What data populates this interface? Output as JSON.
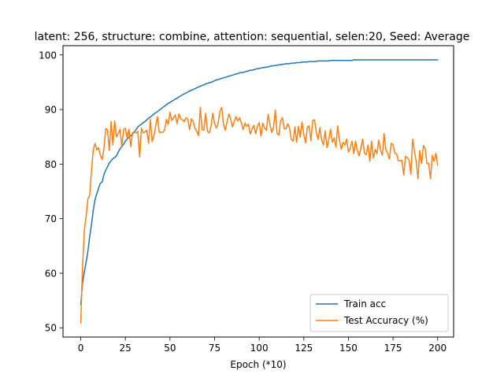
{
  "chart_data": {
    "type": "line",
    "title": "latent: 256, structure: combine, attention: sequential, selen:20, Seed: Average",
    "xlabel": "Epoch (*10)",
    "ylabel": "",
    "xlim": [
      -9.95,
      208.95
    ],
    "ylim": [
      48.3,
      101.7
    ],
    "xticks": [
      0,
      25,
      50,
      75,
      100,
      125,
      150,
      175,
      200
    ],
    "yticks": [
      50,
      60,
      70,
      80,
      90,
      100
    ],
    "grid": false,
    "legend_position": "lower-right",
    "colors": {
      "train": "#1f77b4",
      "test": "#ff7f0e"
    },
    "x_start": 0,
    "series": [
      {
        "name": "Train acc",
        "values": [
          54.3,
          58.2,
          60.2,
          62.0,
          64.0,
          66.7,
          68.9,
          71.5,
          73.5,
          74.6,
          75.6,
          76.5,
          76.7,
          78.1,
          78.9,
          79.5,
          80.2,
          80.6,
          81.0,
          81.2,
          81.5,
          82.2,
          82.8,
          83.2,
          83.6,
          84.2,
          84.6,
          84.9,
          85.2,
          85.5,
          85.9,
          86.3,
          86.8,
          87.1,
          87.3,
          87.6,
          87.8,
          88.1,
          88.4,
          88.6,
          88.9,
          89.2,
          89.4,
          89.6,
          89.9,
          90.1,
          90.4,
          90.6,
          90.9,
          91.1,
          91.3,
          91.5,
          91.7,
          91.9,
          92.1,
          92.3,
          92.5,
          92.7,
          92.9,
          93.0,
          93.2,
          93.4,
          93.5,
          93.7,
          93.8,
          94.0,
          94.1,
          94.3,
          94.4,
          94.5,
          94.7,
          94.8,
          94.9,
          95.0,
          95.1,
          95.3,
          95.4,
          95.5,
          95.6,
          95.7,
          95.8,
          95.9,
          96.0,
          96.1,
          96.2,
          96.3,
          96.4,
          96.5,
          96.6,
          96.7,
          96.8,
          96.8,
          96.9,
          97.0,
          97.1,
          97.2,
          97.2,
          97.3,
          97.4,
          97.5,
          97.5,
          97.6,
          97.7,
          97.7,
          97.8,
          97.8,
          97.9,
          98.0,
          98.0,
          98.1,
          98.1,
          98.2,
          98.2,
          98.3,
          98.3,
          98.4,
          98.4,
          98.4,
          98.5,
          98.5,
          98.5,
          98.6,
          98.6,
          98.6,
          98.7,
          98.7,
          98.7,
          98.7,
          98.8,
          98.8,
          98.8,
          98.8,
          98.8,
          98.9,
          98.9,
          98.9,
          98.9,
          98.9,
          98.9,
          98.9,
          99.0,
          99.0,
          99.0,
          99.0,
          99.0,
          99.0,
          99.0,
          99.0,
          99.0,
          99.0,
          99.0,
          99.0,
          99.0,
          99.1,
          99.1,
          99.1,
          99.1,
          99.1,
          99.1,
          99.1,
          99.1,
          99.1,
          99.1,
          99.1,
          99.1,
          99.1,
          99.1,
          99.1,
          99.1,
          99.1,
          99.1,
          99.1,
          99.1,
          99.1,
          99.1,
          99.1,
          99.1,
          99.1,
          99.1,
          99.1,
          99.1,
          99.1,
          99.1,
          99.1,
          99.1,
          99.1,
          99.1,
          99.1,
          99.1,
          99.1,
          99.1,
          99.1,
          99.1,
          99.1,
          99.1,
          99.1,
          99.1,
          99.1,
          99.1,
          99.1,
          99.1
        ]
      },
      {
        "name": "Test Accuracy (%)",
        "values": [
          50.9,
          61.2,
          67.8,
          70.4,
          73.6,
          74.3,
          78.7,
          82.6,
          83.8,
          82.6,
          83.0,
          81.6,
          80.8,
          82.9,
          86.5,
          86.3,
          82.5,
          87.8,
          83.5,
          87.9,
          85.0,
          85.6,
          86.4,
          83.3,
          86.3,
          86.6,
          84.7,
          86.4,
          83.2,
          85.7,
          86.0,
          85.7,
          86.0,
          81.3,
          86.6,
          85.7,
          85.9,
          86.2,
          83.8,
          88.2,
          84.1,
          85.2,
          87.0,
          88.7,
          85.8,
          85.8,
          85.8,
          86.3,
          88.2,
          87.3,
          89.5,
          88.0,
          88.5,
          89.0,
          87.4,
          89.2,
          88.3,
          88.1,
          87.8,
          88.5,
          88.2,
          86.3,
          88.3,
          87.8,
          86.6,
          86.0,
          85.2,
          90.4,
          86.3,
          86.2,
          89.3,
          86.0,
          85.7,
          86.9,
          89.3,
          87.4,
          86.6,
          87.5,
          89.7,
          90.4,
          87.2,
          86.2,
          87.8,
          89.2,
          88.3,
          86.8,
          87.8,
          88.7,
          87.9,
          88.5,
          87.6,
          86.3,
          87.5,
          86.9,
          87.3,
          85.5,
          86.4,
          87.1,
          85.6,
          86.9,
          87.6,
          85.1,
          87.5,
          86.6,
          86.2,
          89.1,
          87.3,
          85.8,
          86.6,
          89.9,
          85.6,
          85.3,
          87.9,
          88.5,
          86.5,
          86.4,
          87.4,
          86.6,
          84.5,
          84.2,
          86.8,
          84.0,
          86.9,
          84.9,
          87.7,
          85.4,
          83.9,
          86.8,
          87.0,
          84.3,
          88.0,
          88.1,
          85.8,
          84.5,
          86.7,
          84.4,
          83.5,
          86.1,
          83.0,
          84.5,
          86.4,
          84.0,
          84.8,
          83.1,
          87.0,
          84.4,
          82.7,
          84.0,
          83.5,
          84.6,
          82.2,
          82.9,
          84.2,
          81.9,
          84.2,
          82.5,
          81.5,
          82.9,
          84.6,
          82.0,
          81.7,
          83.5,
          80.5,
          84.2,
          81.1,
          82.7,
          81.9,
          84.4,
          82.6,
          81.6,
          85.6,
          82.6,
          82.0,
          80.9,
          83.8,
          83.6,
          82.0,
          81.9,
          80.6,
          80.6,
          80.7,
          78.0,
          81.4,
          81.2,
          80.7,
          78.1,
          84.6,
          82.4,
          80.4,
          77.3,
          82.5,
          80.1,
          83.4,
          82.9,
          80.1,
          80.1,
          77.3,
          81.6,
          80.5,
          82.0,
          79.8
        ]
      }
    ]
  }
}
